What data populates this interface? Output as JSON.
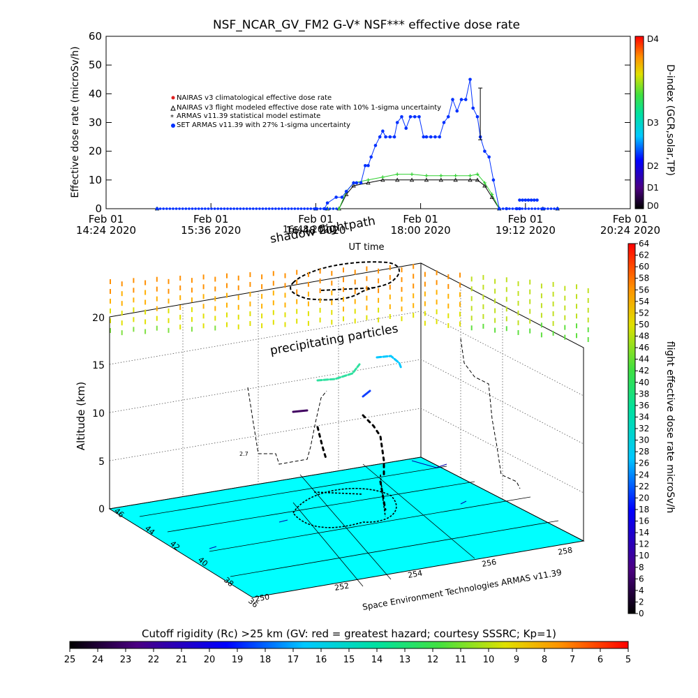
{
  "chart_data": [
    {
      "type": "line",
      "title": "NSF_NCAR_GV_FM2 G-V* NSF*** effective dose rate",
      "xlabel": "UT time",
      "ylabel": "Effective dose rate (microSv/h)",
      "ylim": [
        0,
        60
      ],
      "y_ticks": [
        "0",
        "10",
        "20",
        "30",
        "40",
        "50",
        "60"
      ],
      "x_ticks": [
        {
          "t": 0,
          "line1": "Feb 01",
          "line2": "14:24 2020"
        },
        {
          "t": 72,
          "line1": "Feb 01",
          "line2": "15:36 2020"
        },
        {
          "t": 144,
          "line1": "Feb 01",
          "line2": "16:48 2020"
        },
        {
          "t": 216,
          "line1": "Feb 01",
          "line2": "18:00 2020"
        },
        {
          "t": 288,
          "line1": "Feb 01",
          "line2": "19:12 2020"
        },
        {
          "t": 360,
          "line1": "Feb 01",
          "line2": "20:24 2020"
        }
      ],
      "xlim_minutes": [
        0,
        360
      ],
      "legend": [
        {
          "label": "NAIRAS v3 climatological effective dose rate",
          "color": "#e02020",
          "marker": "circle"
        },
        {
          "label": "NAIRAS v3 flight modeled effective dose rate with 10% 1-sigma uncertainty",
          "color": "#000000",
          "marker": "triangle"
        },
        {
          "label": "ARMAS v11.39 statistical model estimate",
          "color": "#30d030",
          "marker": "asterisk"
        },
        {
          "label": "SET ARMAS v11.39 with 27% 1-sigma uncertainty",
          "color": "#0030ff",
          "marker": "circle"
        }
      ],
      "legend_position": "upper-left",
      "series": [
        {
          "name": "NAIRAS v3 flight modeled effective dose rate with 10% 1-sigma uncertainty",
          "x": [
            35,
            144,
            152,
            160,
            165,
            170,
            180,
            190,
            200,
            210,
            220,
            230,
            240,
            250,
            255,
            260,
            265,
            270,
            300,
            310
          ],
          "y": [
            0,
            0,
            0,
            0,
            5,
            8,
            9,
            10,
            10,
            10,
            10,
            10,
            10,
            10,
            10,
            8,
            4,
            0,
            0,
            0
          ]
        },
        {
          "name": "ARMAS v11.39 statistical model estimate",
          "x": [
            35,
            144,
            152,
            160,
            165,
            170,
            180,
            190,
            200,
            210,
            220,
            230,
            240,
            250,
            255,
            260,
            265,
            270,
            300,
            310
          ],
          "y": [
            0,
            0,
            0,
            0,
            6,
            9,
            10,
            11,
            12,
            12,
            11.5,
            11.5,
            11.5,
            11.5,
            12,
            9,
            5,
            0,
            0,
            0
          ]
        },
        {
          "name": "SET ARMAS v11.39 with 27% 1-sigma uncertainty",
          "x": [
            35,
            144,
            150,
            152,
            158,
            162,
            165,
            170,
            172,
            175,
            178,
            180,
            182,
            185,
            188,
            190,
            192,
            195,
            198,
            200,
            203,
            206,
            209,
            212,
            215,
            218,
            220,
            223,
            226,
            229,
            232,
            235,
            238,
            241,
            244,
            247,
            250,
            252,
            255,
            257,
            260,
            263,
            266,
            270,
            275,
            282,
            284,
            300,
            310
          ],
          "y": [
            0,
            0,
            0,
            2,
            4,
            4,
            6,
            9,
            9,
            9,
            15,
            15,
            18,
            22,
            25,
            27,
            25,
            25,
            25,
            30,
            32,
            28,
            32,
            32,
            32,
            25,
            25,
            25,
            25,
            25,
            30,
            32,
            38,
            34,
            38,
            38,
            45,
            35,
            32,
            25,
            20,
            18,
            10,
            0,
            0,
            0,
            0,
            0,
            0
          ]
        },
        {
          "name": "SET ARMAS (secondary segment)",
          "x": [
            284,
            286,
            288,
            290,
            292,
            294,
            296
          ],
          "y": [
            3,
            3,
            3,
            3,
            3,
            3,
            3
          ]
        }
      ],
      "right_colorbar": {
        "label": "D-index (GCR,solar,TP)",
        "ticks": [
          "D4",
          "D3",
          "D2",
          "D1",
          "D0"
        ]
      }
    },
    {
      "type": "scatter",
      "chart_kind": "3d flight track",
      "zlabel": "Altitude (km)",
      "z_ticks": [
        "0",
        "5",
        "10",
        "15",
        "20"
      ],
      "zlim": [
        0,
        20
      ],
      "lat_ticks": [
        "36",
        "38",
        "40",
        "42",
        "44",
        "46"
      ],
      "lon_ticks": [
        "250",
        "252",
        "254",
        "256",
        "258"
      ],
      "annotations": [
        "shadow flightpath",
        "precipitating particles",
        "Space Environment Technologies ARMAS v11.39"
      ],
      "overlapping_text": "16:48 2020",
      "right_colorbar": {
        "label": "flight effective dose rate microSv/h",
        "ticks": [
          "64",
          "62",
          "60",
          "58",
          "56",
          "54",
          "52",
          "50",
          "48",
          "46",
          "44",
          "42",
          "40",
          "38",
          "36",
          "34",
          "32",
          "30",
          "28",
          "26",
          "24",
          "22",
          "20",
          "18",
          "16",
          "14",
          "12",
          "10",
          "8",
          "6",
          "4",
          "2",
          "0"
        ]
      },
      "bottom_colorbar": {
        "label": "Cutoff rigidity (Rc) >25 km (GV: red = greatest hazard; courtesy SSSRC; Kp=1)",
        "ticks": [
          "25",
          "24",
          "23",
          "22",
          "21",
          "20",
          "19",
          "18",
          "17",
          "16",
          "15",
          "14",
          "13",
          "12",
          "11",
          "10",
          "9",
          "8",
          "7",
          "6",
          "5"
        ]
      },
      "small_label": "2.7"
    }
  ]
}
